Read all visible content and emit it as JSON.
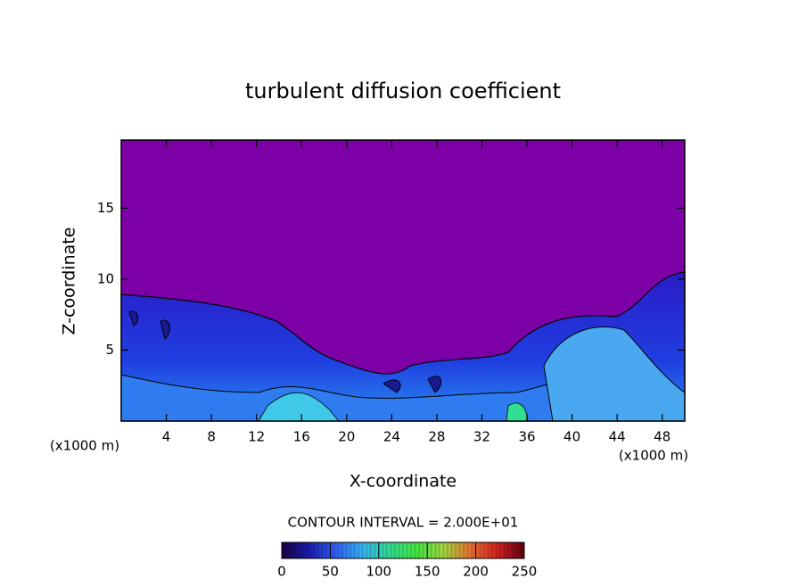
{
  "chart_data": {
    "type": "contour",
    "title": "turbulent diffusion coefficient",
    "xlabel": "X-coordinate",
    "ylabel": "Z-coordinate",
    "x_unit_label": "(x1000 m)",
    "y_unit_label": "(x1000 m)",
    "xlim": [
      0,
      50
    ],
    "xticks": [
      4,
      8,
      12,
      16,
      20,
      24,
      28,
      32,
      36,
      40,
      44,
      48
    ],
    "ylim": [
      0,
      19.8
    ],
    "yticks": [
      5,
      10,
      15
    ],
    "contour_interval_label": "CONTOUR INTERVAL = 2.000E+01",
    "colorbar": {
      "clim": [
        0,
        250
      ],
      "ticks": [
        0,
        50,
        100,
        150,
        200,
        250
      ],
      "colors": [
        "#1a0040",
        "#1b1ba8",
        "#2f5cf0",
        "#2fb0f0",
        "#30d890",
        "#40e040",
        "#a0d040",
        "#e07030",
        "#d02020",
        "#600010"
      ]
    }
  }
}
